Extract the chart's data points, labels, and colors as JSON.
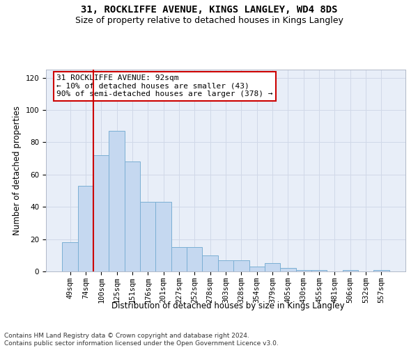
{
  "title_line1": "31, ROCKLIFFE AVENUE, KINGS LANGLEY, WD4 8DS",
  "title_line2": "Size of property relative to detached houses in Kings Langley",
  "xlabel": "Distribution of detached houses by size in Kings Langley",
  "ylabel": "Number of detached properties",
  "categories": [
    "49sqm",
    "74sqm",
    "100sqm",
    "125sqm",
    "151sqm",
    "176sqm",
    "201sqm",
    "227sqm",
    "252sqm",
    "278sqm",
    "303sqm",
    "328sqm",
    "354sqm",
    "379sqm",
    "405sqm",
    "430sqm",
    "455sqm",
    "481sqm",
    "506sqm",
    "532sqm",
    "557sqm"
  ],
  "values": [
    18,
    53,
    72,
    87,
    68,
    43,
    43,
    15,
    15,
    10,
    7,
    7,
    3,
    5,
    2,
    1,
    1,
    0,
    1,
    0,
    1
  ],
  "bar_color": "#c5d8f0",
  "bar_edge_color": "#7bafd4",
  "vline_x": 1.5,
  "vline_color": "#cc0000",
  "ylim": [
    0,
    125
  ],
  "yticks": [
    0,
    20,
    40,
    60,
    80,
    100,
    120
  ],
  "annotation_text": "31 ROCKLIFFE AVENUE: 92sqm\n← 10% of detached houses are smaller (43)\n90% of semi-detached houses are larger (378) →",
  "annotation_box_color": "#ffffff",
  "annotation_box_edge": "#cc0000",
  "footer_line1": "Contains HM Land Registry data © Crown copyright and database right 2024.",
  "footer_line2": "Contains public sector information licensed under the Open Government Licence v3.0.",
  "grid_color": "#d0d8e8",
  "background_color": "#e8eef8",
  "title1_fontsize": 10,
  "title2_fontsize": 9,
  "axis_label_fontsize": 8.5,
  "tick_fontsize": 7.5,
  "annotation_fontsize": 8,
  "footer_fontsize": 6.5
}
